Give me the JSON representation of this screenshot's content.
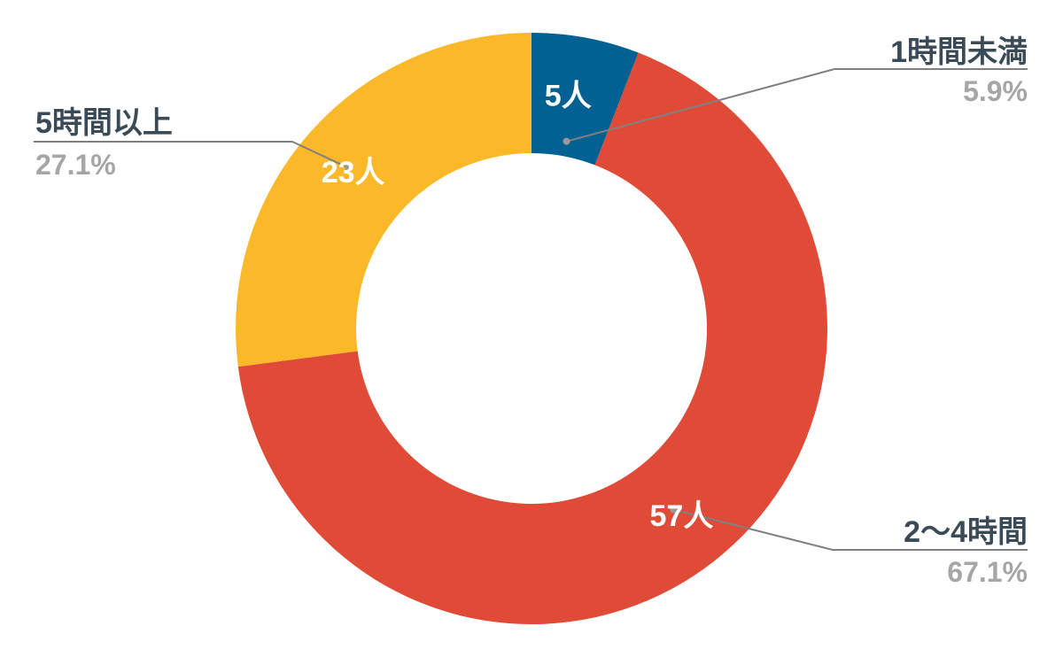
{
  "chart_data": {
    "type": "pie",
    "donut": true,
    "categories": [
      "1時間未満",
      "2〜4時間",
      "5時間以上"
    ],
    "values": [
      5,
      57,
      23
    ],
    "value_labels": [
      "5人",
      "57人",
      "23人"
    ],
    "percent_labels": [
      "5.9%",
      "67.1%",
      "27.1%"
    ],
    "colors": [
      "#006192",
      "#E04B38",
      "#FBB829"
    ],
    "start": "12 o'clock",
    "direction": "clockwise",
    "legend": "outside labels with leader lines",
    "colors_text": {
      "name": "#3A4A57",
      "percent": "#A6A6A6",
      "leader": "#808080"
    }
  }
}
